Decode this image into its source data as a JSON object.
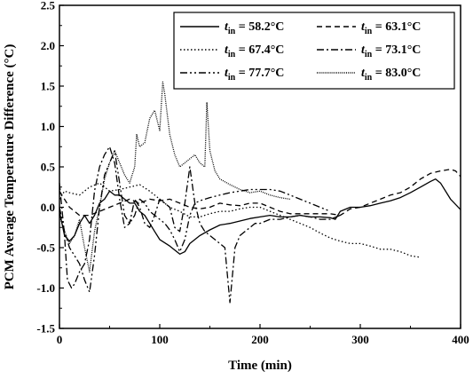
{
  "chart_data": {
    "type": "line",
    "xlabel": "Time (min)",
    "ylabel": "PCM Average Temperature Difference (°C)",
    "xlim": [
      0,
      400
    ],
    "ylim": [
      -1.5,
      2.5
    ],
    "x_ticks": [
      0,
      100,
      200,
      300,
      400
    ],
    "y_ticks": [
      -1.5,
      -1.0,
      -0.5,
      0.0,
      0.5,
      1.0,
      1.5,
      2.0,
      2.5
    ],
    "x_tick_labels": [
      "0",
      "100",
      "200",
      "300",
      "400"
    ],
    "y_tick_labels": [
      "-1.5",
      "-1.0",
      "-0.5",
      "0.0",
      "0.5",
      "1.0",
      "1.5",
      "2.0",
      "2.5"
    ],
    "grid": false,
    "legend_position": "top-right",
    "legend_var": "t",
    "legend_sub": "in",
    "series": [
      {
        "name": "58.2°C",
        "style": "solid",
        "x": [
          0,
          5,
          10,
          15,
          20,
          25,
          30,
          35,
          40,
          45,
          50,
          55,
          60,
          65,
          70,
          75,
          80,
          85,
          90,
          95,
          100,
          110,
          120,
          125,
          130,
          140,
          150,
          160,
          170,
          180,
          190,
          200,
          210,
          220,
          230,
          240,
          250,
          260,
          270,
          275,
          280,
          290,
          300,
          310,
          320,
          330,
          340,
          350,
          360,
          370,
          375,
          380,
          390,
          400
        ],
        "y": [
          -0.05,
          -0.35,
          -0.42,
          -0.35,
          -0.2,
          -0.1,
          -0.2,
          -0.1,
          0.05,
          0.1,
          0.2,
          0.15,
          0.15,
          0.1,
          0.05,
          0.05,
          -0.05,
          -0.1,
          -0.2,
          -0.3,
          -0.4,
          -0.48,
          -0.58,
          -0.55,
          -0.45,
          -0.35,
          -0.28,
          -0.22,
          -0.2,
          -0.17,
          -0.14,
          -0.12,
          -0.1,
          -0.12,
          -0.12,
          -0.1,
          -0.12,
          -0.12,
          -0.13,
          -0.15,
          -0.05,
          0.0,
          0.0,
          0.02,
          0.05,
          0.08,
          0.12,
          0.18,
          0.25,
          0.32,
          0.35,
          0.3,
          0.1,
          -0.03
        ]
      },
      {
        "name": "63.1°C",
        "style": "dashed",
        "x": [
          0,
          10,
          20,
          30,
          40,
          50,
          60,
          70,
          80,
          90,
          100,
          110,
          120,
          130,
          140,
          150,
          160,
          170,
          180,
          190,
          200,
          210,
          220,
          230,
          240,
          250,
          260,
          270,
          280,
          290,
          300,
          310,
          320,
          330,
          340,
          350,
          360,
          370,
          380,
          390,
          395,
          400
        ],
        "y": [
          0.2,
          0.0,
          -0.1,
          -0.1,
          -0.05,
          0.0,
          0.05,
          0.1,
          0.05,
          0.1,
          0.08,
          0.1,
          0.05,
          0.0,
          -0.02,
          0.0,
          0.05,
          0.03,
          0.02,
          0.05,
          0.05,
          0.0,
          -0.05,
          -0.08,
          -0.08,
          -0.08,
          -0.08,
          -0.08,
          -0.1,
          -0.02,
          0.0,
          0.05,
          0.1,
          0.15,
          0.18,
          0.25,
          0.35,
          0.42,
          0.45,
          0.47,
          0.45,
          0.38
        ]
      },
      {
        "name": "67.4°C",
        "style": "dotted",
        "x": [
          0,
          5,
          10,
          20,
          30,
          40,
          50,
          60,
          70,
          80,
          90,
          100,
          110,
          120,
          130,
          140,
          150,
          160,
          170,
          180,
          190,
          200,
          210,
          220,
          230,
          240,
          250,
          260,
          270,
          280,
          290,
          300,
          310,
          320,
          330,
          340,
          350,
          360
        ],
        "y": [
          0.1,
          0.2,
          0.18,
          0.15,
          0.25,
          0.3,
          0.2,
          0.22,
          0.25,
          0.28,
          0.2,
          0.1,
          0.0,
          -0.05,
          -0.12,
          -0.12,
          -0.08,
          -0.05,
          -0.05,
          -0.02,
          0.0,
          0.0,
          -0.05,
          -0.1,
          -0.15,
          -0.2,
          -0.25,
          -0.32,
          -0.38,
          -0.42,
          -0.45,
          -0.45,
          -0.48,
          -0.52,
          -0.52,
          -0.55,
          -0.6,
          -0.62
        ]
      },
      {
        "name": "73.1°C",
        "style": "dashdot",
        "x": [
          0,
          5,
          8,
          12,
          15,
          20,
          25,
          30,
          35,
          40,
          45,
          50,
          55,
          60,
          65,
          70,
          75,
          80,
          85,
          90,
          95,
          100,
          105,
          110,
          115,
          120,
          125,
          130,
          135,
          140,
          145,
          150,
          155,
          160,
          165,
          170,
          175,
          180,
          185,
          190,
          195,
          200,
          210,
          220,
          230,
          240,
          250,
          260,
          270,
          280
        ],
        "y": [
          0.3,
          -0.35,
          -0.9,
          -1.0,
          -0.95,
          -0.8,
          -0.7,
          -0.4,
          0.2,
          0.5,
          0.65,
          0.75,
          0.55,
          0.1,
          -0.25,
          -0.2,
          0.1,
          0.0,
          -0.2,
          -0.25,
          -0.1,
          0.1,
          0.05,
          0.0,
          -0.25,
          -0.3,
          0.05,
          0.5,
          0.05,
          -0.2,
          -0.3,
          -0.35,
          -0.4,
          -0.45,
          -0.5,
          -1.18,
          -0.5,
          -0.35,
          -0.3,
          -0.25,
          -0.2,
          -0.2,
          -0.15,
          -0.15,
          -0.12,
          -0.1,
          -0.12,
          -0.15,
          -0.15,
          -0.1
        ]
      },
      {
        "name": "77.7°C",
        "style": "dashdotdot",
        "x": [
          0,
          5,
          10,
          15,
          20,
          25,
          30,
          35,
          40,
          45,
          50,
          55,
          60,
          65,
          70,
          75,
          80,
          85,
          90,
          95,
          100,
          105,
          110,
          115,
          120,
          125,
          130,
          135,
          140,
          145,
          150,
          160,
          170,
          180,
          190,
          200,
          210,
          220,
          230,
          240,
          250,
          260,
          270
        ],
        "y": [
          0.0,
          -0.3,
          -0.5,
          -0.6,
          -0.7,
          -0.9,
          -1.05,
          -0.6,
          0.0,
          0.4,
          0.55,
          0.7,
          0.3,
          -0.1,
          -0.2,
          -0.1,
          0.1,
          0.05,
          -0.05,
          -0.1,
          -0.15,
          -0.2,
          -0.28,
          -0.4,
          -0.55,
          -0.4,
          -0.1,
          0.05,
          0.08,
          0.1,
          0.12,
          0.15,
          0.18,
          0.2,
          0.22,
          0.22,
          0.22,
          0.2,
          0.15,
          0.1,
          0.05,
          0.0,
          -0.05
        ]
      },
      {
        "name": "83.0°C",
        "style": "densedot",
        "x": [
          0,
          5,
          10,
          15,
          20,
          25,
          30,
          35,
          40,
          45,
          50,
          55,
          60,
          65,
          70,
          75,
          77,
          80,
          85,
          90,
          95,
          100,
          103,
          105,
          107,
          110,
          115,
          120,
          125,
          130,
          135,
          140,
          145,
          147,
          150,
          155,
          160,
          170,
          180,
          190,
          200,
          210,
          220,
          230
        ],
        "y": [
          -0.1,
          -0.3,
          -0.45,
          -0.35,
          -0.15,
          -0.5,
          -0.8,
          -0.3,
          0.0,
          0.35,
          0.55,
          0.7,
          0.55,
          0.4,
          0.3,
          0.5,
          0.9,
          0.75,
          0.8,
          1.1,
          1.2,
          0.95,
          1.55,
          1.4,
          1.2,
          0.9,
          0.65,
          0.5,
          0.55,
          0.6,
          0.65,
          0.55,
          0.5,
          1.3,
          0.7,
          0.45,
          0.35,
          0.28,
          0.22,
          0.18,
          0.2,
          0.15,
          0.12,
          0.1
        ]
      }
    ]
  }
}
